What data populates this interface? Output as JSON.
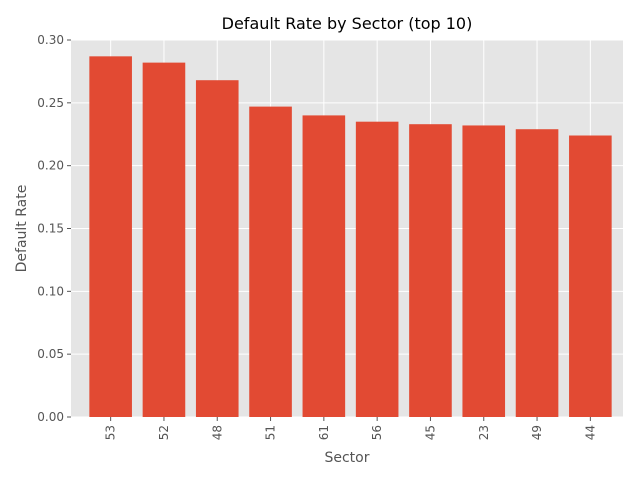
{
  "chart_data": {
    "type": "bar",
    "title": "Default Rate by Sector (top 10)",
    "xlabel": "Sector",
    "ylabel": "Default Rate",
    "categories": [
      "53",
      "52",
      "48",
      "51",
      "61",
      "56",
      "45",
      "23",
      "49",
      "44"
    ],
    "values": [
      0.287,
      0.282,
      0.268,
      0.247,
      0.24,
      0.235,
      0.233,
      0.232,
      0.229,
      0.224
    ],
    "ylim": [
      0,
      0.3
    ],
    "yticks": [
      "0.00",
      "0.05",
      "0.10",
      "0.15",
      "0.20",
      "0.25",
      "0.30"
    ],
    "grid": true,
    "style": "ggplot",
    "colors": {
      "bar": "#E24A33",
      "plot_background": "#E5E5E5",
      "grid": "#FFFFFF",
      "text": "#555555",
      "title": "#000000"
    }
  }
}
